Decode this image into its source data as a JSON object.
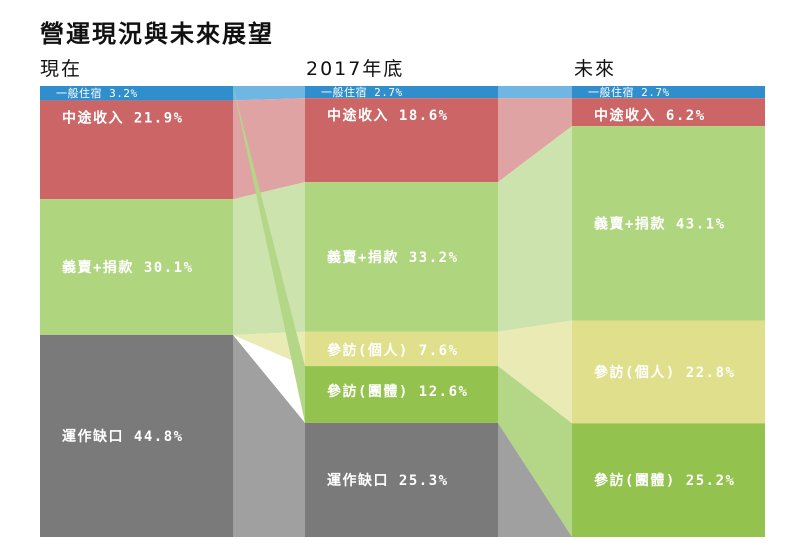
{
  "title": "營運現況與未來展望",
  "chart_data": {
    "type": "area",
    "columns": [
      {
        "label": "現在",
        "segments": [
          {
            "name": "一般住宿",
            "value": 3.2,
            "display": "一般住宿 3.2%",
            "color": "#2f8ecb"
          },
          {
            "name": "中途收入",
            "value": 21.9,
            "display": "中途收入 21.9%",
            "color": "#cc6666"
          },
          {
            "name": "義賣+捐款",
            "value": 30.1,
            "display": "義賣+捐款 30.1%",
            "color": "#b0d57f"
          },
          {
            "name": "運作缺口",
            "value": 44.8,
            "display": "運作缺口 44.8%",
            "color": "#7a7a7a"
          }
        ]
      },
      {
        "label": "2017年底",
        "segments": [
          {
            "name": "一般住宿",
            "value": 2.7,
            "display": "一般住宿 2.7%",
            "color": "#2f8ecb"
          },
          {
            "name": "中途收入",
            "value": 18.6,
            "display": "中途收入 18.6%",
            "color": "#cc6666"
          },
          {
            "name": "義賣+捐款",
            "value": 33.2,
            "display": "義賣+捐款 33.2%",
            "color": "#b0d57f"
          },
          {
            "name": "參訪(個人)",
            "value": 7.6,
            "display": "參訪(個人) 7.6%",
            "color": "#dfdf8c"
          },
          {
            "name": "參訪(團體)",
            "value": 12.6,
            "display": "參訪(團體) 12.6%",
            "color": "#94c24f"
          },
          {
            "name": "運作缺口",
            "value": 25.3,
            "display": "運作缺口 25.3%",
            "color": "#7a7a7a"
          }
        ]
      },
      {
        "label": "未來",
        "segments": [
          {
            "name": "一般住宿",
            "value": 2.7,
            "display": "一般住宿 2.7%",
            "color": "#2f8ecb"
          },
          {
            "name": "中途收入",
            "value": 6.2,
            "display": "中途收入 6.2%",
            "color": "#cc6666"
          },
          {
            "name": "義賣+捐款",
            "value": 43.1,
            "display": "義賣+捐款 43.1%",
            "color": "#b0d57f"
          },
          {
            "name": "參訪(個人)",
            "value": 22.8,
            "display": "參訪(個人) 22.8%",
            "color": "#dfdf8c"
          },
          {
            "name": "參訪(團體)",
            "value": 25.2,
            "display": "參訪(團體) 25.2%",
            "color": "#94c24f"
          }
        ]
      }
    ],
    "connector_colors": {
      "一般住宿": "#6fb6e2",
      "中途收入": "#e0a3a3",
      "義賣+捐款": "#cde3ad",
      "參訪(個人)": "#eaeab5",
      "參訪(團體)": "#b4d687",
      "運作缺口": "#a0a0a0"
    }
  }
}
